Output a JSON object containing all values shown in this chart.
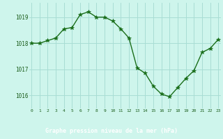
{
  "x": [
    0,
    1,
    2,
    3,
    4,
    5,
    6,
    7,
    8,
    9,
    10,
    11,
    12,
    13,
    14,
    15,
    16,
    17,
    18,
    19,
    20,
    21,
    22,
    23
  ],
  "y": [
    1018.0,
    1018.0,
    1018.1,
    1018.2,
    1018.55,
    1018.6,
    1019.1,
    1019.2,
    1019.0,
    1019.0,
    1018.85,
    1018.55,
    1018.2,
    1017.05,
    1016.85,
    1016.35,
    1016.05,
    1015.95,
    1016.3,
    1016.65,
    1016.95,
    1017.65,
    1017.8,
    1018.15
  ],
  "line_color": "#1a6e1a",
  "marker": "*",
  "marker_size": 4,
  "marker_color": "#1a6e1a",
  "background_color": "#cef5ec",
  "grid_color": "#a8ddd4",
  "xlabel": "Graphe pression niveau de la mer (hPa)",
  "xlabel_color": "#1a5c1a",
  "tick_color": "#1a5c1a",
  "yticks": [
    1016,
    1017,
    1018,
    1019
  ],
  "xtick_labels": [
    "0",
    "1",
    "2",
    "3",
    "4",
    "5",
    "6",
    "7",
    "8",
    "9",
    "10",
    "11",
    "12",
    "13",
    "14",
    "15",
    "16",
    "17",
    "18",
    "19",
    "20",
    "21",
    "22",
    "23"
  ],
  "ylim": [
    1015.5,
    1019.55
  ],
  "xlim": [
    -0.3,
    23.3
  ],
  "bottom_bar_color": "#2e7d32",
  "linewidth": 1.0
}
